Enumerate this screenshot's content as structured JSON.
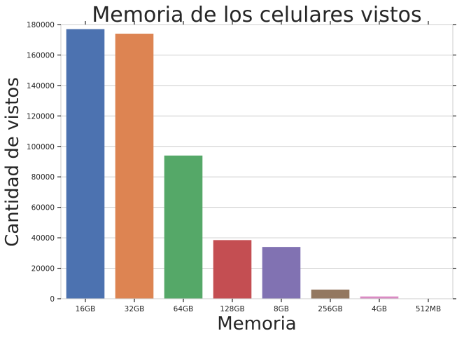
{
  "chart_data": {
    "type": "bar",
    "title": "Memoria de los celulares vistos",
    "xlabel": "Memoria",
    "ylabel": "Cantidad de vistos",
    "categories": [
      "16GB",
      "32GB",
      "64GB",
      "128GB",
      "8GB",
      "256GB",
      "4GB",
      "512MB"
    ],
    "values": [
      177000,
      174000,
      94000,
      38500,
      34000,
      6000,
      1500,
      200
    ],
    "colors": [
      "#4c72b0",
      "#dd8452",
      "#55a868",
      "#c44e52",
      "#8172b2",
      "#937860",
      "#da8bc3",
      "#8c8c8c"
    ],
    "ylim": [
      0,
      180000
    ],
    "yticks": [
      0,
      20000,
      40000,
      60000,
      80000,
      100000,
      120000,
      140000,
      160000,
      180000
    ],
    "grid": "horizontal",
    "legend": "none"
  }
}
